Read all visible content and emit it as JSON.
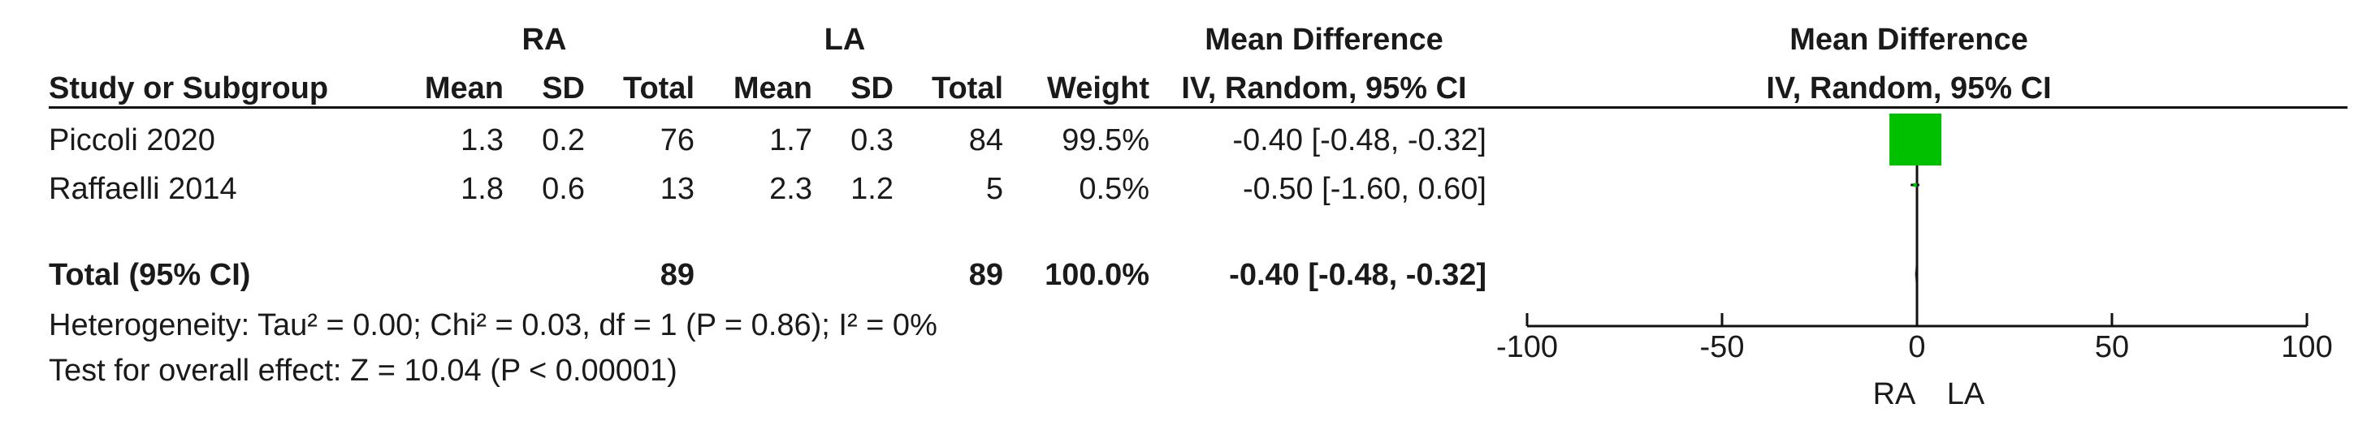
{
  "header": {
    "group1": "RA",
    "group2": "LA",
    "md_title": "Mean Difference",
    "md_sub": "IV, Random, 95% CI",
    "plot_title": "Mean Difference",
    "plot_sub": "IV, Random, 95% CI",
    "study_col": "Study or Subgroup",
    "mean": "Mean",
    "sd": "SD",
    "total": "Total",
    "weight": "Weight"
  },
  "studies": [
    {
      "name": "Piccoli 2020",
      "mean1": "1.3",
      "sd1": "0.2",
      "total1": "76",
      "mean2": "1.7",
      "sd2": "0.3",
      "total2": "84",
      "weight": "99.5%",
      "ci": "-0.40 [-0.48, -0.32]"
    },
    {
      "name": "Raffaelli 2014",
      "mean1": "1.8",
      "sd1": "0.6",
      "total1": "13",
      "mean2": "2.3",
      "sd2": "1.2",
      "total2": "5",
      "weight": "0.5%",
      "ci": "-0.50 [-1.60, 0.60]"
    }
  ],
  "total": {
    "label": "Total (95% CI)",
    "total1": "89",
    "total2": "89",
    "weight": "100.0%",
    "ci": "-0.40 [-0.48, -0.32]"
  },
  "footer": {
    "heterogeneity": "Heterogeneity: Tau² = 0.00; Chi² = 0.03, df = 1 (P = 0.86); I² = 0%",
    "overall": "Test for overall effect: Z = 10.04 (P < 0.00001)"
  },
  "colors": {
    "marker": "#00c000",
    "line": "#111111"
  },
  "chart_data": {
    "type": "forest",
    "xlim": [
      -100,
      100
    ],
    "ticks": [
      -100,
      -50,
      0,
      50,
      100
    ],
    "tick_labels": [
      "-100",
      "-50",
      "0",
      "50",
      "100"
    ],
    "favours_left": "RA",
    "favours_right": "LA",
    "null_value": 0,
    "studies": [
      {
        "name": "Piccoli 2020",
        "estimate": -0.4,
        "ci_low": -0.48,
        "ci_high": -0.32,
        "weight": 99.5
      },
      {
        "name": "Raffaelli 2014",
        "estimate": -0.5,
        "ci_low": -1.6,
        "ci_high": 0.6,
        "weight": 0.5
      }
    ],
    "pooled": {
      "estimate": -0.4,
      "ci_low": -0.48,
      "ci_high": -0.32
    }
  }
}
